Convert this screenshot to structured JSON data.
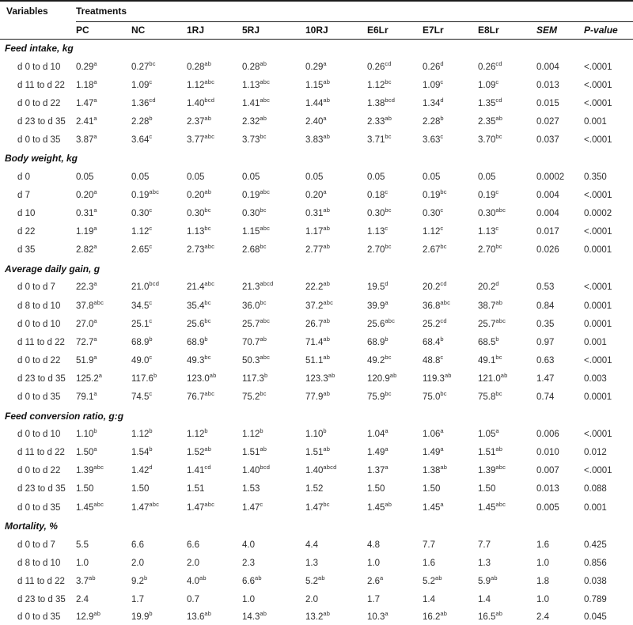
{
  "table": {
    "variables_header": "Variables",
    "treatments_header": "Treatments",
    "treatment_columns": [
      "PC",
      "NC",
      "1RJ",
      "5RJ",
      "10RJ",
      "E6Lr",
      "E7Lr",
      "E8Lr"
    ],
    "stat_columns": [
      "SEM",
      "P-value"
    ],
    "sections": [
      {
        "title": "Feed intake, kg",
        "rows": [
          {
            "label": "d 0 to d 10",
            "cells": [
              "0.29^a",
              "0.27^bc",
              "0.28^ab",
              "0.28^ab",
              "0.29^a",
              "0.26^cd",
              "0.26^d",
              "0.26^cd"
            ],
            "sem": "0.004",
            "p_value": "<.0001"
          },
          {
            "label": "d 11 to d 22",
            "cells": [
              "1.18^a",
              "1.09^c",
              "1.12^abc",
              "1.13^abc",
              "1.15^ab",
              "1.12^bc",
              "1.09^c",
              "1.09^c"
            ],
            "sem": "0.013",
            "p_value": "<.0001"
          },
          {
            "label": "d 0 to d 22",
            "cells": [
              "1.47^a",
              "1.36^cd",
              "1.40^bcd",
              "1.41^abc",
              "1.44^ab",
              "1.38^bcd",
              "1.34^d",
              "1.35^cd"
            ],
            "sem": "0.015",
            "p_value": "<.0001"
          },
          {
            "label": "d 23 to d 35",
            "cells": [
              "2.41^a",
              "2.28^b",
              "2.37^ab",
              "2.32^ab",
              "2.40^a",
              "2.33^ab",
              "2.28^b",
              "2.35^ab"
            ],
            "sem": "0.027",
            "p_value": "0.001"
          },
          {
            "label": "d 0 to d 35",
            "cells": [
              "3.87^a",
              "3.64^c",
              "3.77^abc",
              "3.73^bc",
              "3.83^ab",
              "3.71^bc",
              "3.63^c",
              "3.70^bc"
            ],
            "sem": "0.037",
            "p_value": "<.0001"
          }
        ]
      },
      {
        "title": "Body weight, kg",
        "rows": [
          {
            "label": "d 0",
            "cells": [
              "0.05",
              "0.05",
              "0.05",
              "0.05",
              "0.05",
              "0.05",
              "0.05",
              "0.05"
            ],
            "sem": "0.0002",
            "p_value": "0.350"
          },
          {
            "label": "d 7",
            "cells": [
              "0.20^a",
              "0.19^abc",
              "0.20^ab",
              "0.19^abc",
              "0.20^a",
              "0.18^c",
              "0.19^bc",
              "0.19^c"
            ],
            "sem": "0.004",
            "p_value": "<.0001"
          },
          {
            "label": "d 10",
            "cells": [
              "0.31^a",
              "0.30^c",
              "0.30^bc",
              "0.30^bc",
              "0.31^ab",
              "0.30^bc",
              "0.30^c",
              "0.30^abc"
            ],
            "sem": "0.004",
            "p_value": "0.0002"
          },
          {
            "label": "d 22",
            "cells": [
              "1.19^a",
              "1.12^c",
              "1.13^bc",
              "1.15^abc",
              "1.17^ab",
              "1.13^c",
              "1.12^c",
              "1.13^c"
            ],
            "sem": "0.017",
            "p_value": "<.0001"
          },
          {
            "label": "d 35",
            "cells": [
              "2.82^a",
              "2.65^c",
              "2.73^abc",
              "2.68^bc",
              "2.77^ab",
              "2.70^bc",
              "2.67^bc",
              "2.70^bc"
            ],
            "sem": "0.026",
            "p_value": "0.0001"
          }
        ]
      },
      {
        "title": "Average daily gain, g",
        "rows": [
          {
            "label": "d 0 to d 7",
            "cells": [
              "22.3^a",
              "21.0^bcd",
              "21.4^abc",
              "21.3^abcd",
              "22.2^ab",
              "19.5^d",
              "20.2^cd",
              "20.2^d"
            ],
            "sem": "0.53",
            "p_value": "<.0001"
          },
          {
            "label": "d 8 to d 10",
            "cells": [
              "37.8^abc",
              "34.5^c",
              "35.4^bc",
              "36.0^bc",
              "37.2^abc",
              "39.9^a",
              "36.8^abc",
              "38.7^ab"
            ],
            "sem": "0.84",
            "p_value": "0.0001"
          },
          {
            "label": "d 0 to d 10",
            "cells": [
              "27.0^a",
              "25.1^c",
              "25.6^bc",
              "25.7^abc",
              "26.7^ab",
              "25.6^abc",
              "25.2^cd",
              "25.7^abc"
            ],
            "sem": "0.35",
            "p_value": "0.0001"
          },
          {
            "label": "d 11 to d 22",
            "cells": [
              "72.7^a",
              "68.9^b",
              "68.9^b",
              "70.7^ab",
              "71.4^ab",
              "68.9^b",
              "68.4^b",
              "68.5^b"
            ],
            "sem": "0.97",
            "p_value": "0.001"
          },
          {
            "label": "d 0 to d 22",
            "cells": [
              "51.9^a",
              "49.0^c",
              "49.3^bc",
              "50.3^abc",
              "51.1^ab",
              "49.2^bc",
              "48.8^c",
              "49.1^bc"
            ],
            "sem": "0.63",
            "p_value": "<.0001"
          },
          {
            "label": "d 23 to d 35",
            "cells": [
              "125.2^a",
              "117.6^b",
              "123.0^ab",
              "117.3^b",
              "123.3^ab",
              "120.9^ab",
              "119.3^ab",
              "121.0^ab"
            ],
            "sem": "1.47",
            "p_value": "0.003"
          },
          {
            "label": "d 0 to d 35",
            "cells": [
              "79.1^a",
              "74.5^c",
              "76.7^abc",
              "75.2^bc",
              "77.9^ab",
              "75.9^bc",
              "75.0^bc",
              "75.8^bc"
            ],
            "sem": "0.74",
            "p_value": "0.0001"
          }
        ]
      },
      {
        "title": "Feed conversion ratio, g:g",
        "rows": [
          {
            "label": "d 0 to d 10",
            "cells": [
              "1.10^b",
              "1.12^b",
              "1.12^b",
              "1.12^b",
              "1.10^b",
              "1.04^a",
              "1.06^a",
              "1.05^a"
            ],
            "sem": "0.006",
            "p_value": "<.0001"
          },
          {
            "label": "d 11 to d 22",
            "cells": [
              "1.50^a",
              "1.54^b",
              "1.52^ab",
              "1.51^ab",
              "1.51^ab",
              "1.49^a",
              "1.49^a",
              "1.51^ab"
            ],
            "sem": "0.010",
            "p_value": "0.012"
          },
          {
            "label": "d 0 to d 22",
            "cells": [
              "1.39^abc",
              "1.42^d",
              "1.41^cd",
              "1.40^bcd",
              "1.40^abcd",
              "1.37^a",
              "1.38^ab",
              "1.39^abc"
            ],
            "sem": "0.007",
            "p_value": "<.0001"
          },
          {
            "label": "d 23 to d 35",
            "cells": [
              "1.50",
              "1.50",
              "1.51",
              "1.53",
              "1.52",
              "1.50",
              "1.50",
              "1.50"
            ],
            "sem": "0.013",
            "p_value": "0.088"
          },
          {
            "label": "d 0 to d 35",
            "cells": [
              "1.45^abc",
              "1.47^abc",
              "1.47^abc",
              "1.47^c",
              "1.47^bc",
              "1.45^ab",
              "1.45^a",
              "1.45^abc"
            ],
            "sem": "0.005",
            "p_value": "0.001"
          }
        ]
      },
      {
        "title": "Mortality, %",
        "rows": [
          {
            "label": "d 0 to d 7",
            "cells": [
              "5.5",
              "6.6",
              "6.6",
              "4.0",
              "4.4",
              "4.8",
              "7.7",
              "7.7"
            ],
            "sem": "1.6",
            "p_value": "0.425"
          },
          {
            "label": "d 8 to d 10",
            "cells": [
              "1.0",
              "2.0",
              "2.0",
              "2.3",
              "1.3",
              "1.0",
              "1.6",
              "1.3"
            ],
            "sem": "1.0",
            "p_value": "0.856"
          },
          {
            "label": "d 11 to d 22",
            "cells": [
              "3.7^ab",
              "9.2^b",
              "4.0^ab",
              "6.6^ab",
              "5.2^ab",
              "2.6^a",
              "5.2^ab",
              "5.9^ab"
            ],
            "sem": "1.8",
            "p_value": "0.038"
          },
          {
            "label": "d 23 to d 35",
            "cells": [
              "2.4",
              "1.7",
              "0.7",
              "1.0",
              "2.0",
              "1.7",
              "1.4",
              "1.4"
            ],
            "sem": "1.0",
            "p_value": "0.789"
          },
          {
            "label": "d 0 to d 35",
            "cells": [
              "12.9^ab",
              "19.9^b",
              "13.6^ab",
              "14.3^ab",
              "13.2^ab",
              "10.3^a",
              "16.2^ab",
              "16.5^ab"
            ],
            "sem": "2.4",
            "p_value": "0.045"
          }
        ]
      }
    ]
  }
}
